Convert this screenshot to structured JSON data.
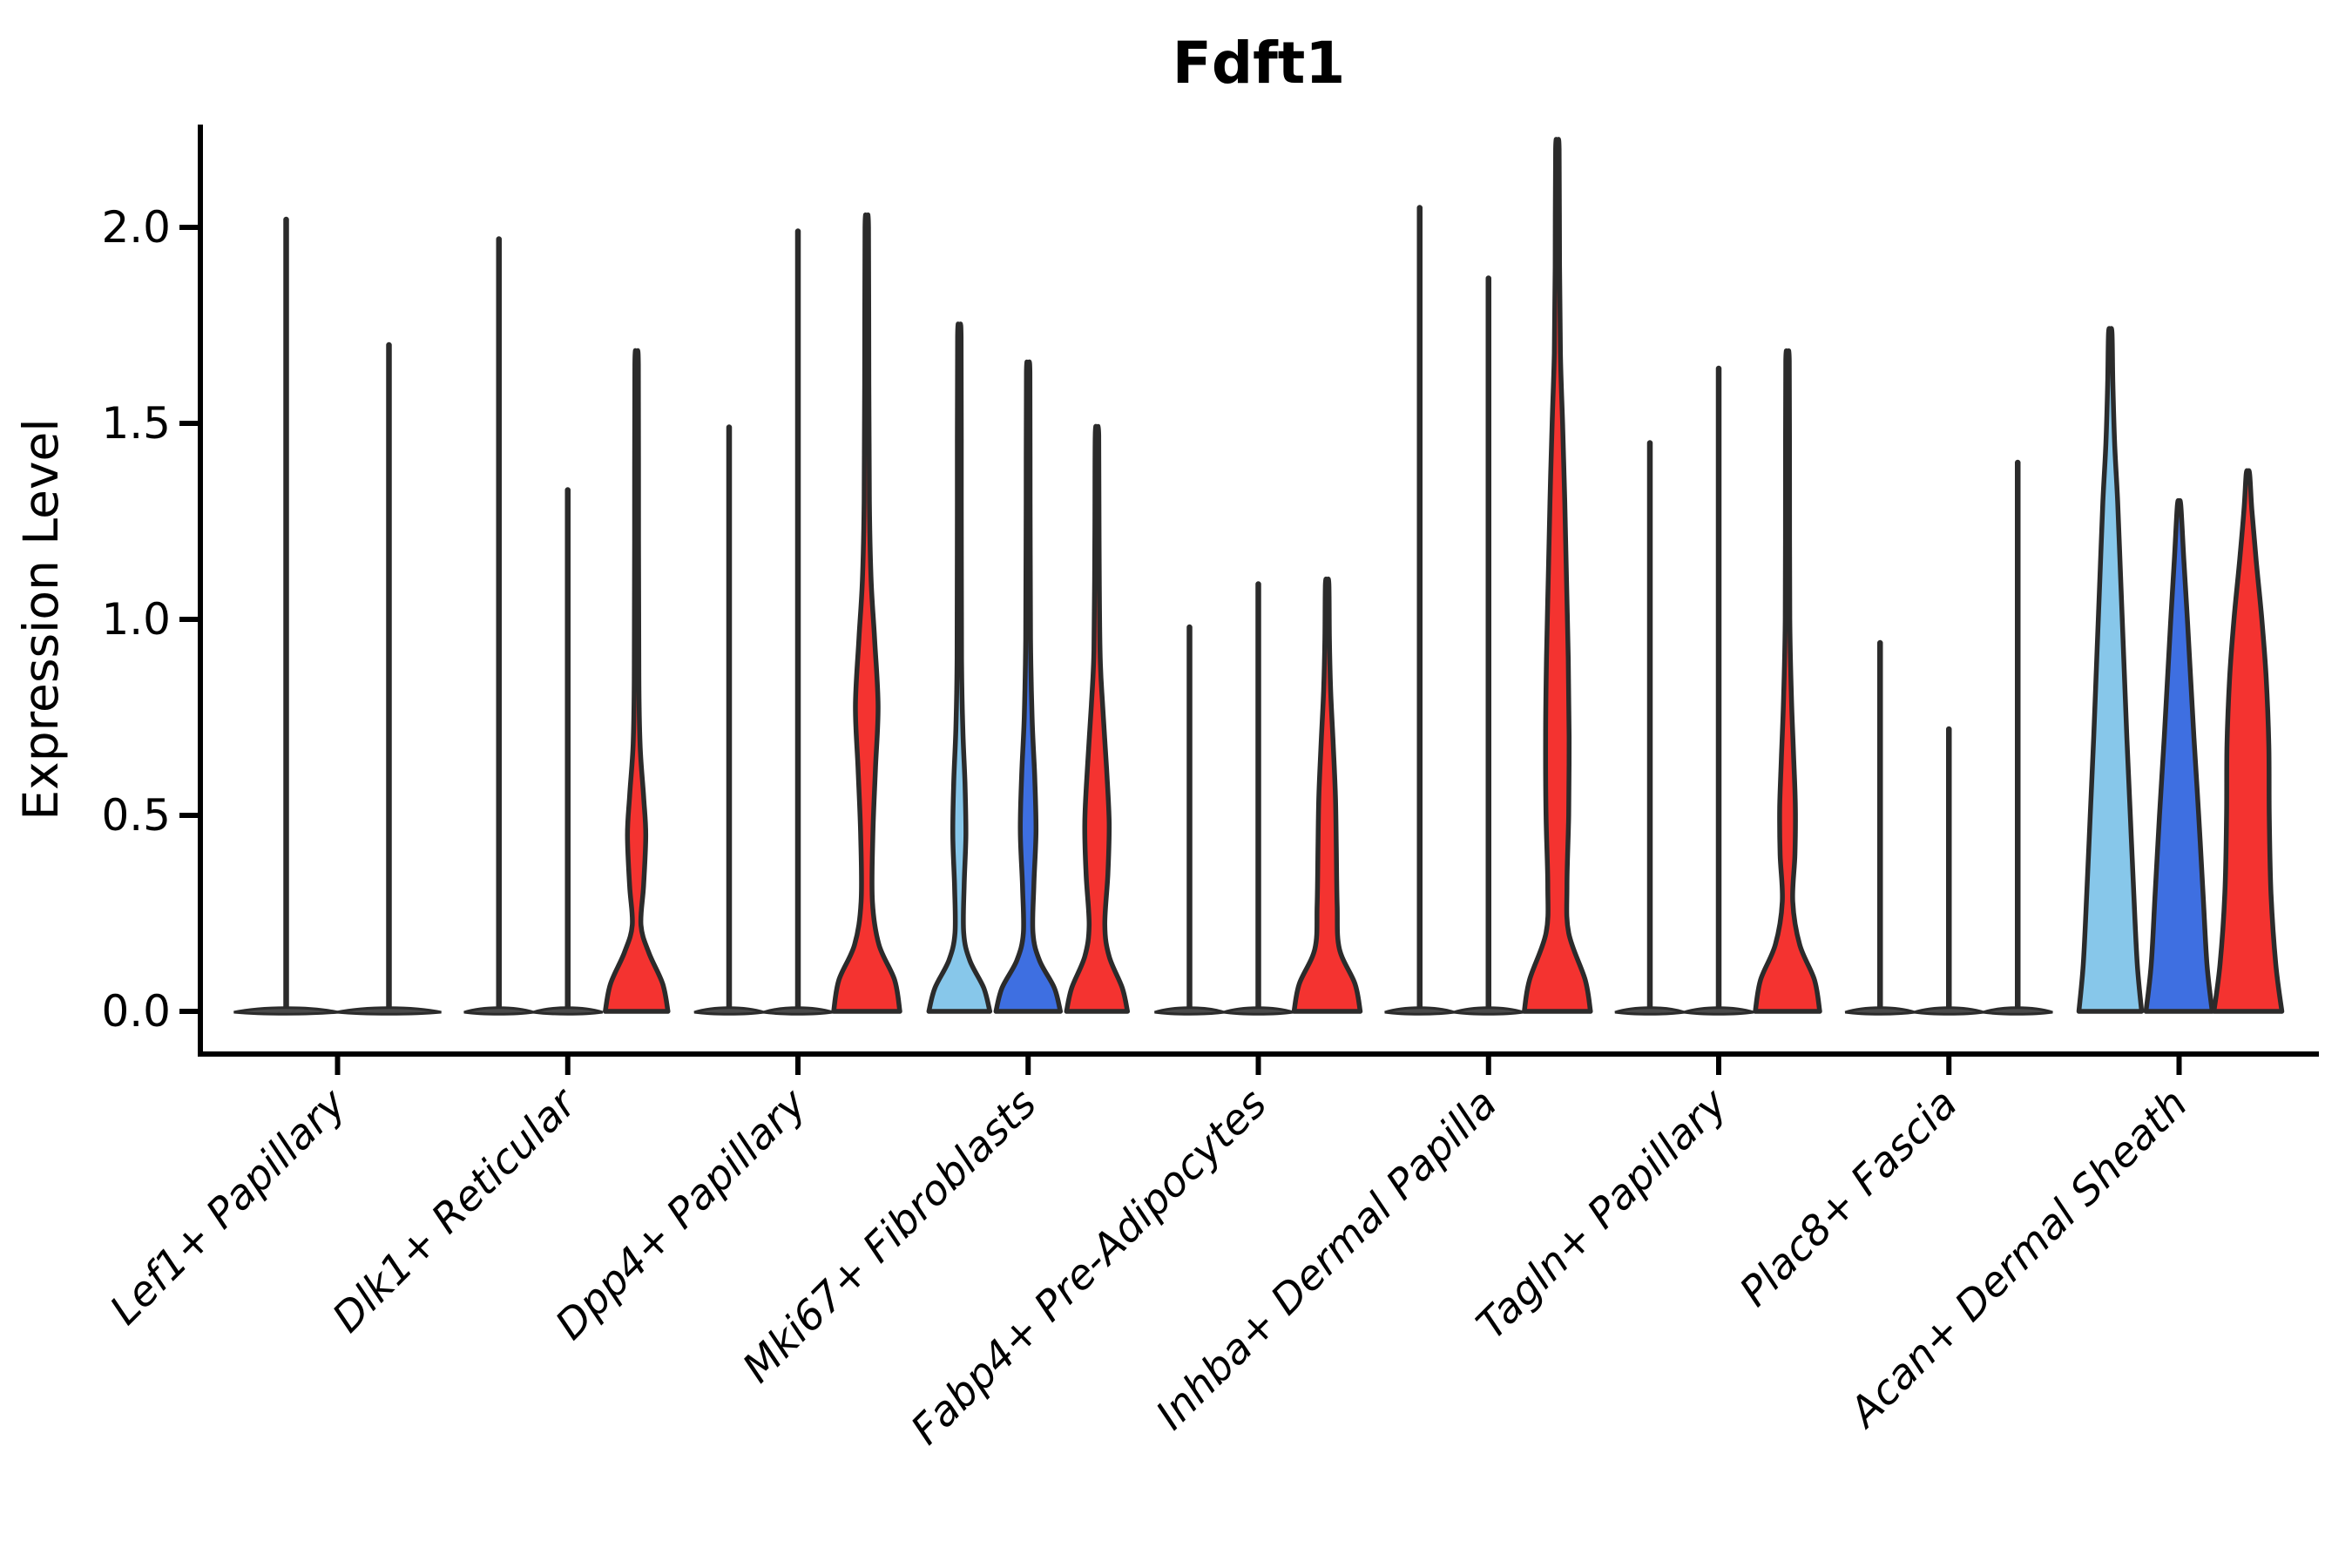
{
  "chart_data": {
    "type": "violin",
    "title": "Fdft1",
    "ylabel": "Expression Level",
    "xlabel": "",
    "ytick_labels_top_to_bottom": [
      "2.0",
      "1.5",
      "1.0",
      "0.5",
      "0.0"
    ],
    "ytick_values": [
      2.0,
      1.5,
      1.0,
      0.5,
      0.0
    ],
    "ylim": [
      -0.11,
      2.26
    ],
    "grid": false,
    "legend": "none",
    "categories": [
      "Lef1+ Papillary",
      "Dlk1+ Reticular",
      "Dpp4+ Papillary",
      "Mki67+ Fibroblasts",
      "Fabp4+ Pre-Adipocytes",
      "Inhba+ Dermal Papilla",
      "Tagln+ Papillary",
      "Plac8+ Fascia",
      "Acan+ Dermal Sheath"
    ],
    "series_colors": {
      "light_blue": "#87C7EA",
      "dark_blue": "#3E6FE1",
      "red": "#F43330"
    },
    "outline_color": "#2B2B2B",
    "foot_fill_color": "#4A4A4A",
    "groups": [
      {
        "category": "Lef1+ Papillary",
        "violins": [
          {
            "color": null,
            "shape": "spike",
            "max": 2.02,
            "foot_halfwidth": 60
          },
          {
            "color": null,
            "shape": "spike",
            "max": 1.7,
            "foot_halfwidth": 60
          }
        ]
      },
      {
        "category": "Dlk1+ Reticular",
        "violins": [
          {
            "color": null,
            "shape": "spike",
            "max": 1.97,
            "foot_halfwidth": 40
          },
          {
            "color": null,
            "shape": "spike",
            "max": 1.33,
            "foot_halfwidth": 40
          },
          {
            "color": "red",
            "shape": "violin",
            "max": 1.65,
            "profile": [
              [
                0,
                36
              ],
              [
                0.07,
                30
              ],
              [
                0.15,
                14
              ],
              [
                0.22,
                5
              ],
              [
                0.32,
                8
              ],
              [
                0.45,
                10.5
              ],
              [
                0.55,
                8
              ],
              [
                0.68,
                4
              ],
              [
                0.85,
                2.6
              ],
              [
                1.2,
                2.3
              ],
              [
                1.65,
                2
              ]
            ]
          }
        ]
      },
      {
        "category": "Dpp4+ Papillary",
        "violins": [
          {
            "color": null,
            "shape": "spike",
            "max": 1.49,
            "foot_halfwidth": 40
          },
          {
            "color": null,
            "shape": "spike",
            "max": 1.99,
            "foot_halfwidth": 40
          },
          {
            "color": "red",
            "shape": "violin",
            "max": 2.0,
            "profile": [
              [
                0,
                38
              ],
              [
                0.08,
                32
              ],
              [
                0.17,
                14
              ],
              [
                0.28,
                6.5
              ],
              [
                0.45,
                7
              ],
              [
                0.62,
                10
              ],
              [
                0.78,
                13
              ],
              [
                0.95,
                9
              ],
              [
                1.1,
                5
              ],
              [
                1.3,
                3
              ],
              [
                1.6,
                2.4
              ],
              [
                2.0,
                2
              ]
            ]
          }
        ]
      },
      {
        "category": "Mki67+ Fibroblasts",
        "violins": [
          {
            "color": "light_blue",
            "shape": "violin",
            "max": 1.72,
            "profile": [
              [
                0,
                35
              ],
              [
                0.06,
                28
              ],
              [
                0.13,
                12
              ],
              [
                0.2,
                5
              ],
              [
                0.32,
                5.5
              ],
              [
                0.45,
                7.5
              ],
              [
                0.58,
                6.5
              ],
              [
                0.72,
                4
              ],
              [
                0.9,
                2.6
              ],
              [
                1.3,
                2.3
              ],
              [
                1.72,
                2
              ]
            ]
          },
          {
            "color": "dark_blue",
            "shape": "violin",
            "max": 1.63,
            "profile": [
              [
                0,
                37
              ],
              [
                0.06,
                30
              ],
              [
                0.13,
                13
              ],
              [
                0.2,
                5.5
              ],
              [
                0.32,
                6.5
              ],
              [
                0.46,
                9
              ],
              [
                0.6,
                7.5
              ],
              [
                0.75,
                4.5
              ],
              [
                0.95,
                2.8
              ],
              [
                1.3,
                2.3
              ],
              [
                1.63,
                2
              ]
            ]
          },
          {
            "color": "red",
            "shape": "violin",
            "max": 1.47,
            "profile": [
              [
                0,
                35
              ],
              [
                0.06,
                29
              ],
              [
                0.14,
                14
              ],
              [
                0.22,
                9
              ],
              [
                0.35,
                12.5
              ],
              [
                0.48,
                14
              ],
              [
                0.62,
                11
              ],
              [
                0.78,
                6.5
              ],
              [
                0.92,
                3.5
              ],
              [
                1.2,
                2.4
              ],
              [
                1.47,
                2
              ]
            ]
          }
        ]
      },
      {
        "category": "Fabp4+ Pre-Adipocytes",
        "violins": [
          {
            "color": null,
            "shape": "spike",
            "max": 0.98,
            "foot_halfwidth": 40
          },
          {
            "color": null,
            "shape": "spike",
            "max": 1.09,
            "foot_halfwidth": 40
          },
          {
            "color": "red",
            "shape": "violin",
            "max": 1.09,
            "profile": [
              [
                0,
                38
              ],
              [
                0.07,
                32
              ],
              [
                0.16,
                14
              ],
              [
                0.27,
                11.5
              ],
              [
                0.42,
                10.5
              ],
              [
                0.55,
                9.5
              ],
              [
                0.68,
                7
              ],
              [
                0.82,
                4
              ],
              [
                0.95,
                2.6
              ],
              [
                1.09,
                2
              ]
            ]
          }
        ]
      },
      {
        "category": "Inhba+ Dermal Papilla",
        "violins": [
          {
            "color": null,
            "shape": "spike",
            "max": 2.05,
            "foot_halfwidth": 40
          },
          {
            "color": null,
            "shape": "spike",
            "max": 1.87,
            "foot_halfwidth": 40
          },
          {
            "color": "red",
            "shape": "violin",
            "max": 2.2,
            "profile": [
              [
                0,
                38
              ],
              [
                0.08,
                32
              ],
              [
                0.2,
                13
              ],
              [
                0.32,
                11
              ],
              [
                0.5,
                13
              ],
              [
                0.7,
                13.5
              ],
              [
                0.9,
                12.5
              ],
              [
                1.1,
                10.5
              ],
              [
                1.3,
                8.5
              ],
              [
                1.5,
                6
              ],
              [
                1.68,
                3.5
              ],
              [
                1.9,
                2.5
              ],
              [
                2.2,
                2
              ]
            ]
          }
        ]
      },
      {
        "category": "Tagln+ Papillary",
        "violins": [
          {
            "color": null,
            "shape": "spike",
            "max": 1.45,
            "foot_halfwidth": 40
          },
          {
            "color": null,
            "shape": "spike",
            "max": 1.64,
            "foot_halfwidth": 40
          },
          {
            "color": "red",
            "shape": "violin",
            "max": 1.66,
            "profile": [
              [
                0,
                37
              ],
              [
                0.08,
                31
              ],
              [
                0.17,
                14
              ],
              [
                0.28,
                6
              ],
              [
                0.4,
                8.5
              ],
              [
                0.52,
                9
              ],
              [
                0.65,
                7
              ],
              [
                0.8,
                4.5
              ],
              [
                1.0,
                2.6
              ],
              [
                1.35,
                2.3
              ],
              [
                1.66,
                2
              ]
            ]
          }
        ]
      },
      {
        "category": "Plac8+ Fascia",
        "violins": [
          {
            "color": null,
            "shape": "spike",
            "max": 0.94,
            "foot_halfwidth": 40
          },
          {
            "color": null,
            "shape": "spike",
            "max": 0.72,
            "foot_halfwidth": 40
          },
          {
            "color": null,
            "shape": "spike",
            "max": 1.4,
            "foot_halfwidth": 40
          }
        ]
      },
      {
        "category": "Acan+ Dermal Sheath",
        "violins": [
          {
            "color": "light_blue",
            "shape": "violin",
            "max": 1.73,
            "profile": [
              [
                0,
                36
              ],
              [
                0.12,
                31
              ],
              [
                0.3,
                27
              ],
              [
                0.5,
                23
              ],
              [
                0.7,
                19
              ],
              [
                0.9,
                15.5
              ],
              [
                1.1,
                12
              ],
              [
                1.3,
                8.5
              ],
              [
                1.45,
                5
              ],
              [
                1.6,
                3
              ],
              [
                1.73,
                2
              ]
            ]
          },
          {
            "color": "dark_blue",
            "shape": "violin",
            "max": 1.29,
            "profile": [
              [
                0,
                38
              ],
              [
                0.12,
                32
              ],
              [
                0.3,
                27.5
              ],
              [
                0.5,
                22.5
              ],
              [
                0.7,
                17
              ],
              [
                0.88,
                12.5
              ],
              [
                1.02,
                9
              ],
              [
                1.15,
                5.5
              ],
              [
                1.29,
                2
              ]
            ]
          },
          {
            "color": "red",
            "shape": "violin",
            "max": 1.37,
            "profile": [
              [
                0,
                39
              ],
              [
                0.12,
                32
              ],
              [
                0.3,
                26.5
              ],
              [
                0.5,
                24.5
              ],
              [
                0.68,
                24
              ],
              [
                0.85,
                21
              ],
              [
                1.0,
                16
              ],
              [
                1.15,
                9.5
              ],
              [
                1.28,
                4.5
              ],
              [
                1.37,
                2
              ]
            ]
          }
        ]
      }
    ]
  }
}
